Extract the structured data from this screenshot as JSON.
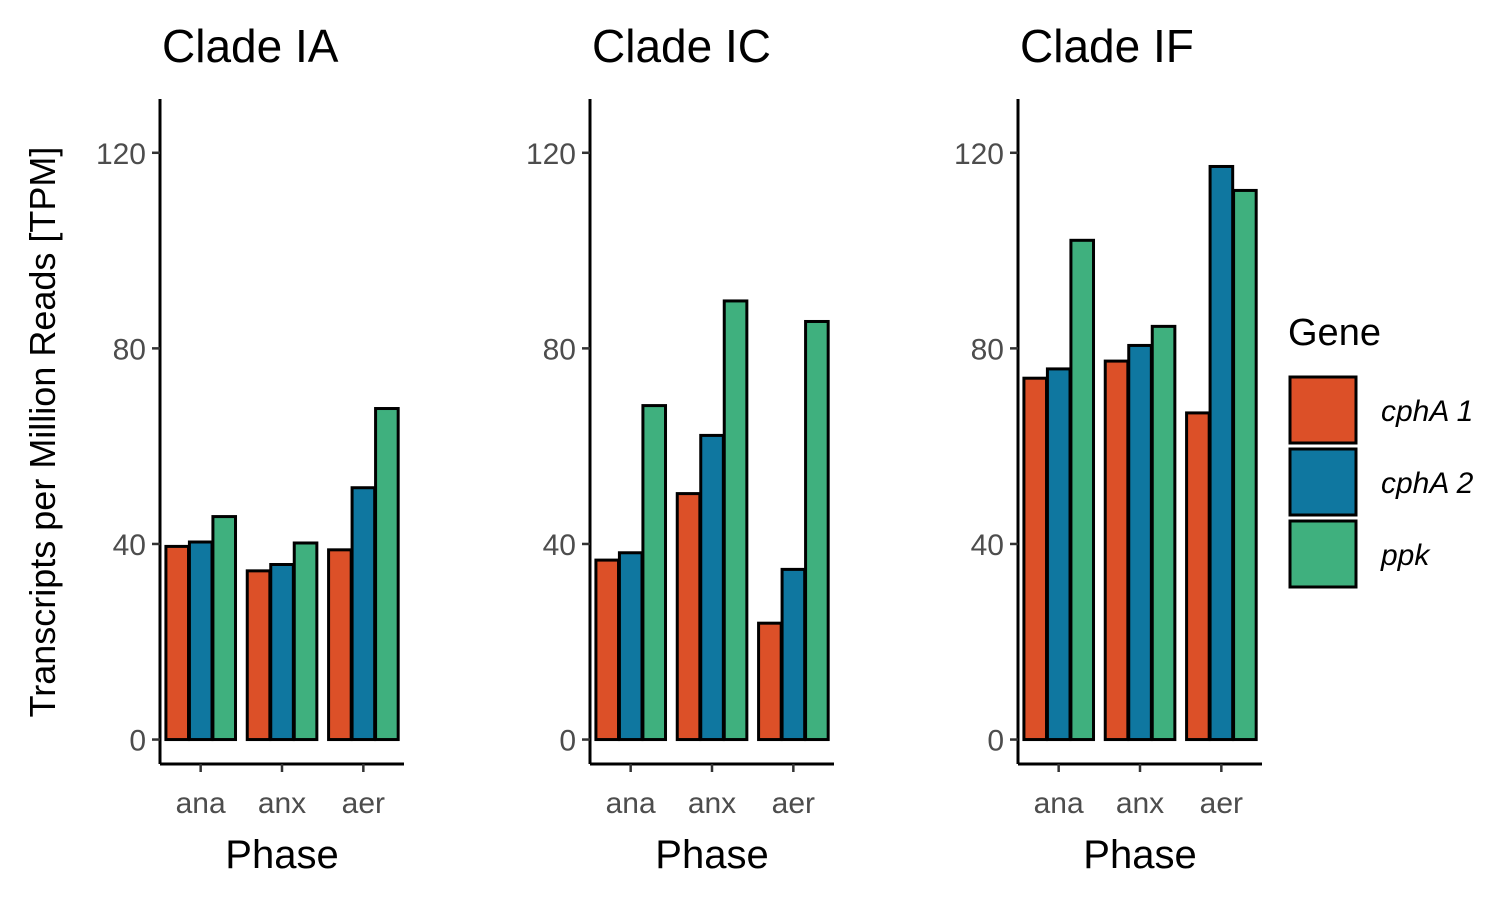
{
  "chart_data": [
    {
      "type": "bar",
      "title": "Clade IA",
      "xlabel": "Phase",
      "ylabel": "Transcripts per Million Reads [TPM]",
      "categories": [
        "ana",
        "anx",
        "aer"
      ],
      "ylim": [
        -5,
        131
      ],
      "yticks": [
        0,
        40,
        80,
        120
      ],
      "series": [
        {
          "name": "cphA 1",
          "values": [
            39.5,
            34.5,
            38.8
          ]
        },
        {
          "name": "cphA 2",
          "values": [
            40.4,
            35.8,
            51.5
          ]
        },
        {
          "name": "ppk",
          "values": [
            45.6,
            40.2,
            67.7
          ]
        }
      ]
    },
    {
      "type": "bar",
      "title": "Clade IC",
      "xlabel": "Phase",
      "categories": [
        "ana",
        "anx",
        "aer"
      ],
      "ylim": [
        -5,
        131
      ],
      "yticks": [
        0,
        40,
        80,
        120
      ],
      "series": [
        {
          "name": "cphA 1",
          "values": [
            36.7,
            50.3,
            23.8
          ]
        },
        {
          "name": "cphA 2",
          "values": [
            38.2,
            62.2,
            34.8
          ]
        },
        {
          "name": "ppk",
          "values": [
            68.3,
            89.7,
            85.5
          ]
        }
      ]
    },
    {
      "type": "bar",
      "title": "Clade IF",
      "xlabel": "Phase",
      "categories": [
        "ana",
        "anx",
        "aer"
      ],
      "ylim": [
        -5,
        131
      ],
      "yticks": [
        0,
        40,
        80,
        120
      ],
      "series": [
        {
          "name": "cphA 1",
          "values": [
            73.9,
            77.4,
            66.8
          ]
        },
        {
          "name": "cphA 2",
          "values": [
            75.8,
            80.6,
            117.2
          ]
        },
        {
          "name": "ppk",
          "values": [
            102.1,
            84.5,
            112.3
          ]
        }
      ]
    }
  ],
  "legend": {
    "title": "Gene",
    "position": "right",
    "items": [
      {
        "label": "cphA 1",
        "color": "#dc5028"
      },
      {
        "label": "cphA 2",
        "color": "#0f77a0"
      },
      {
        "label": "ppk",
        "color": "#3fb07e"
      }
    ]
  },
  "colors": {
    "cphA 1": "#dc5028",
    "cphA 2": "#0f77a0",
    "ppk": "#3fb07e"
  }
}
